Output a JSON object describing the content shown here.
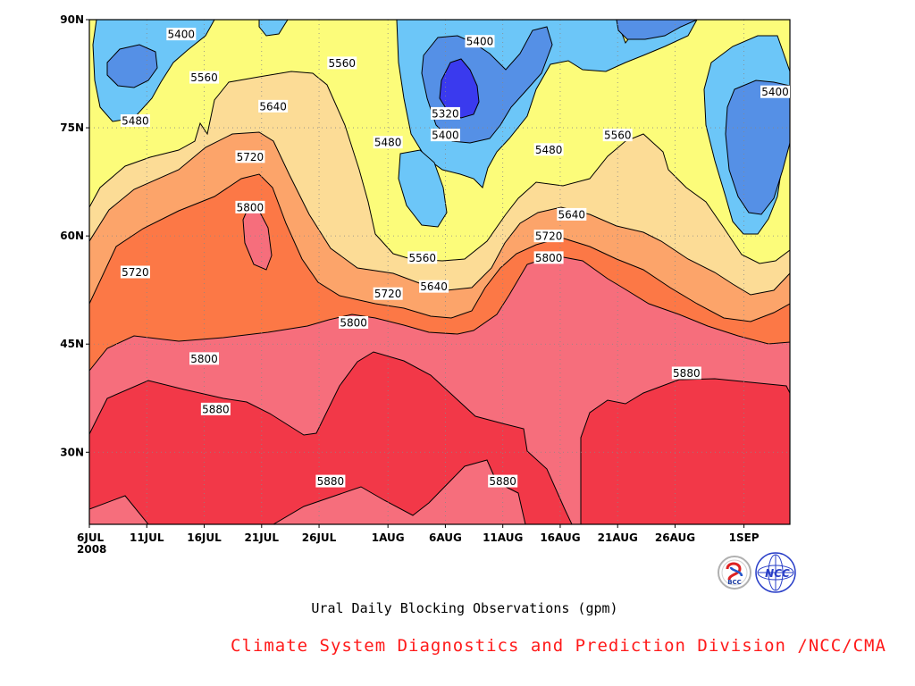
{
  "chart_data": {
    "type": "heatmap",
    "subtype": "filled-contour",
    "caption": "Ural Daily Blocking Observations (gpm)",
    "credit": "Climate System Diagnostics and Prediction Division /NCC/CMA",
    "x_ticks": [
      "6JUL",
      "11JUL",
      "16JUL",
      "21JUL",
      "26JUL",
      "1AUG",
      "6AUG",
      "11AUG",
      "16AUG",
      "21AUG",
      "26AUG",
      "1SEP"
    ],
    "x_year": "2008",
    "y_ticks": [
      "90N",
      "75N",
      "60N",
      "45N",
      "30N"
    ],
    "contour_levels": [
      5320,
      5400,
      5480,
      5560,
      5640,
      5720,
      5800,
      5880
    ],
    "level_colors": {
      "below_5320": "#3a3aee",
      "5320_5400": "#5590e6",
      "5400_5480": "#6cc6f8",
      "5480_5560": "#fcfc7a",
      "5560_5640": "#fcdc96",
      "5640_5720": "#fca46a",
      "5720_5800": "#fc7846",
      "5800_5880": "#f66e7c",
      "above_5880": "#f23848"
    },
    "contour_labels": [
      {
        "date": "14JUL",
        "lat": 88,
        "value": "5400"
      },
      {
        "date": "16JUL",
        "lat": 82,
        "value": "5560"
      },
      {
        "date": "10JUL",
        "lat": 76,
        "value": "5480"
      },
      {
        "date": "28JUL",
        "lat": 84,
        "value": "5560"
      },
      {
        "date": "22JUL",
        "lat": 78,
        "value": "5640"
      },
      {
        "date": "20JUL",
        "lat": 71,
        "value": "5720"
      },
      {
        "date": "20JUL",
        "lat": 64,
        "value": "5800"
      },
      {
        "date": "10JUL",
        "lat": 55,
        "value": "5720"
      },
      {
        "date": "9AUG",
        "lat": 87,
        "value": "5400"
      },
      {
        "date": "6AUG",
        "lat": 77,
        "value": "5320"
      },
      {
        "date": "6AUG",
        "lat": 74,
        "value": "5400"
      },
      {
        "date": "1AUG",
        "lat": 73,
        "value": "5480"
      },
      {
        "date": "15AUG",
        "lat": 72,
        "value": "5480"
      },
      {
        "date": "21AUG",
        "lat": 74,
        "value": "5560"
      },
      {
        "date": "4SEP",
        "lat": 80,
        "value": "5400"
      },
      {
        "date": "17AUG",
        "lat": 63,
        "value": "5640"
      },
      {
        "date": "15AUG",
        "lat": 60,
        "value": "5720"
      },
      {
        "date": "15AUG",
        "lat": 57,
        "value": "5800"
      },
      {
        "date": "4AUG",
        "lat": 57,
        "value": "5560"
      },
      {
        "date": "5AUG",
        "lat": 53,
        "value": "5640"
      },
      {
        "date": "1AUG",
        "lat": 52,
        "value": "5720"
      },
      {
        "date": "29JUL",
        "lat": 48,
        "value": "5800"
      },
      {
        "date": "16JUL",
        "lat": 43,
        "value": "5800"
      },
      {
        "date": "17JUL",
        "lat": 36,
        "value": "5880"
      },
      {
        "date": "27AUG",
        "lat": 41,
        "value": "5880"
      },
      {
        "date": "27JUL",
        "lat": 26,
        "value": "5880"
      },
      {
        "date": "11AUG",
        "lat": 26,
        "value": "5880"
      }
    ]
  }
}
